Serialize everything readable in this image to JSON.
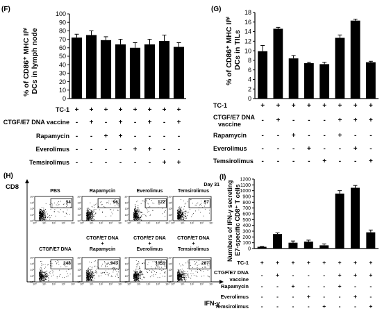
{
  "panel_f": {
    "letter": "(F)",
    "ylabel_lines": [
      "% of CD86⁺ MHC IIʰⁱ",
      "DCs in lymph node"
    ],
    "rows": [
      {
        "label": "TC-1",
        "signs": [
          "+",
          "+",
          "+",
          "+",
          "+",
          "+",
          "+",
          "+"
        ]
      },
      {
        "label": "CTGF/E7 DNA vaccine",
        "signs": [
          "-",
          "+",
          "-",
          "+",
          "-",
          "+",
          "-",
          "+"
        ]
      },
      {
        "label": "Rapamycin",
        "signs": [
          "-",
          "-",
          "+",
          "+",
          "-",
          "-",
          "-",
          "-"
        ]
      },
      {
        "label": "Everolimus",
        "signs": [
          "-",
          "-",
          "-",
          "-",
          "+",
          "+",
          "-",
          "-"
        ]
      },
      {
        "label": "Temsirolimus",
        "signs": [
          "-",
          "-",
          "-",
          "-",
          "-",
          "-",
          "+",
          "+"
        ]
      }
    ]
  },
  "panel_g": {
    "letter": "(G)",
    "ylabel_lines": [
      "% of CD86⁺ MHC IIʰⁱ",
      "DCs in TILs"
    ],
    "rows": [
      {
        "label": "TC-1",
        "signs": [
          "+",
          "+",
          "+",
          "+",
          "+",
          "+",
          "+",
          "+"
        ]
      },
      {
        "label": "CTGF/E7 DNA",
        "label2": "vaccine",
        "signs": [
          "-",
          "+",
          "-",
          "-",
          "-",
          "+",
          "+",
          "+"
        ]
      },
      {
        "label": "Rapamycin",
        "signs": [
          "-",
          "-",
          "+",
          "-",
          "-",
          "+",
          "-",
          "-"
        ]
      },
      {
        "label": "Everolimus",
        "signs": [
          "-",
          "-",
          "-",
          "+",
          "-",
          "-",
          "+",
          "-"
        ]
      },
      {
        "label": "Temsirolimus",
        "signs": [
          "-",
          "-",
          "-",
          "-",
          "+",
          "-",
          "-",
          "+"
        ]
      }
    ]
  },
  "panel_h": {
    "letter": "(H)",
    "yaxis": "CD8",
    "xaxis": "IFN-γ",
    "day": "Day 31",
    "tick_labels": [
      "10⁰",
      "10¹",
      "10²",
      "10³",
      "10⁴"
    ],
    "plots": [
      {
        "title": [
          "PBS"
        ],
        "count": "34"
      },
      {
        "title": [
          "Rapamycin"
        ],
        "count": "96"
      },
      {
        "title": [
          "Everolimus"
        ],
        "count": "122"
      },
      {
        "title": [
          "Temsirolimus"
        ],
        "count": "57"
      },
      {
        "title": [
          "CTGF/E7 DNA"
        ],
        "count": "248"
      },
      {
        "title": [
          "CTGF/E7 DNA",
          "+",
          "Rapamycin"
        ],
        "count": "943"
      },
      {
        "title": [
          "CTGF/E7 DNA",
          "+",
          "Everolimus"
        ],
        "count": "1051"
      },
      {
        "title": [
          "CTGF/E7 DNA",
          "+",
          "Temsirolimus"
        ],
        "count": "287"
      }
    ]
  },
  "panel_i": {
    "letter": "(I)",
    "ylabel_lines": [
      "Numbers of IFN-γ secreting",
      "E7-specific CD8⁺ T cells"
    ],
    "rows": [
      {
        "label": "TC-1",
        "signs": [
          "+",
          "+",
          "+",
          "+",
          "+",
          "+",
          "+",
          "+"
        ]
      },
      {
        "label": "CTGF/E7 DNA",
        "label2": "vaccine",
        "signs": [
          "-",
          "+",
          "-",
          "-",
          "-",
          "+",
          "+",
          "+"
        ]
      },
      {
        "label": "Rapamycin",
        "signs": [
          "-",
          "-",
          "+",
          "-",
          "-",
          "+",
          "-",
          "-"
        ]
      },
      {
        "label": "Everolimus",
        "signs": [
          "-",
          "-",
          "-",
          "+",
          "-",
          "-",
          "+",
          "-"
        ]
      },
      {
        "label": "Temsirolimus",
        "signs": [
          "-",
          "-",
          "-",
          "-",
          "+",
          "-",
          "-",
          "+"
        ]
      }
    ]
  },
  "chart_data": [
    {
      "id": "F",
      "type": "bar",
      "ylabel": "% of CD86+ MHC IIhi DCs in lymph node",
      "ylim": [
        0,
        100
      ],
      "yticks": [
        0,
        10,
        20,
        30,
        40,
        50,
        60,
        70,
        80,
        90,
        100
      ],
      "values": [
        72,
        75,
        69,
        64,
        60,
        64,
        68,
        61
      ],
      "errors": [
        4,
        5,
        4,
        6,
        6,
        6,
        7,
        5
      ],
      "color": "#000000"
    },
    {
      "id": "G",
      "type": "bar",
      "ylabel": "% of CD86+ MHC IIhi DCs in TILs",
      "ylim": [
        0,
        18
      ],
      "yticks": [
        0,
        2,
        4,
        6,
        8,
        10,
        12,
        14,
        16,
        18
      ],
      "values": [
        9.9,
        14.6,
        8.4,
        7.4,
        7.2,
        12.7,
        16.3,
        7.6
      ],
      "errors": [
        1.2,
        0.3,
        0.6,
        0.2,
        0.4,
        0.6,
        0.3,
        0.2
      ],
      "color": "#000000"
    },
    {
      "id": "I",
      "type": "bar",
      "ylabel": "Numbers of IFN-γ secreting E7-specific CD8+ T cells",
      "ylim": [
        0,
        1200
      ],
      "yticks": [
        0,
        100,
        200,
        300,
        400,
        500,
        600,
        700,
        800,
        900,
        1000,
        1100,
        1200
      ],
      "values": [
        30,
        250,
        100,
        120,
        55,
        950,
        1050,
        280
      ],
      "errors": [
        5,
        20,
        30,
        25,
        25,
        50,
        40,
        40
      ],
      "color": "#000000"
    }
  ]
}
